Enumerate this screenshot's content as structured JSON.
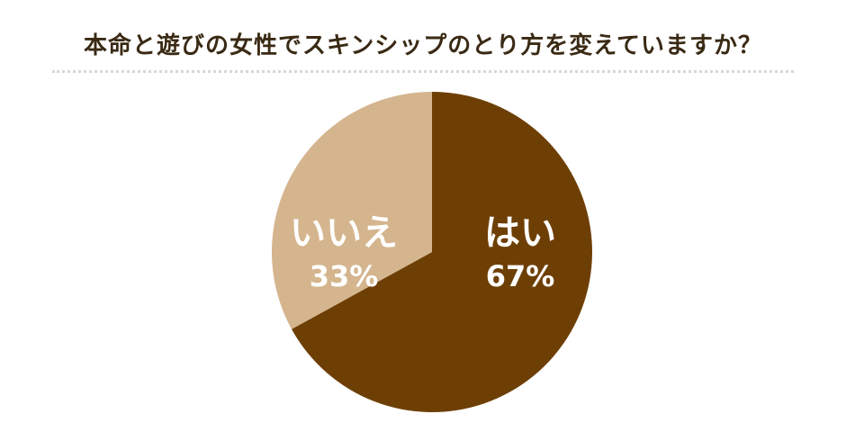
{
  "chart_data": {
    "type": "pie",
    "title": "本命と遊びの女性でスキンシップのとり方を変えていますか？",
    "slices": [
      {
        "label": "はい",
        "value": 67,
        "value_label": "67%",
        "color": "#6e3f05"
      },
      {
        "label": "いいえ",
        "value": 33,
        "value_label": "33%",
        "color": "#d4b58e"
      }
    ],
    "start_angle": "12 o'clock",
    "direction": "clockwise",
    "legend": "none"
  }
}
